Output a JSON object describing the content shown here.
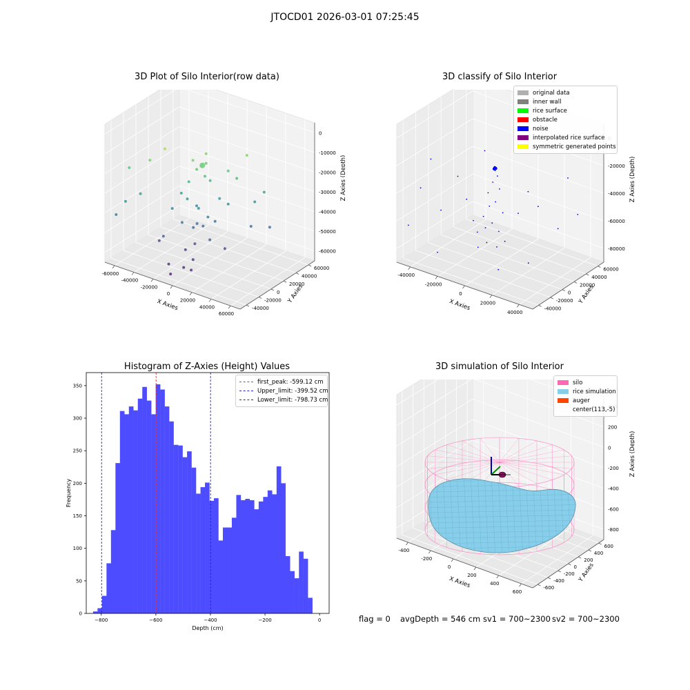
{
  "title": "JTOCD01 2026-03-01 07:25:45",
  "status": {
    "flag": "flag = 0",
    "avg_depth": "avgDepth = 546 cm",
    "sv1": "sv1 = 700~2300",
    "sv2": "sv2 = 700~2300"
  },
  "chart_data": [
    {
      "type": "scatter",
      "title": "3D Plot of Silo Interior(row data)",
      "xlabel": "X Axies",
      "ylabel": "Y Axies",
      "zlabel": "Z Axies (Depth)",
      "x_ticks": [
        "-60000",
        "-40000",
        "-20000",
        "0",
        "20000",
        "40000",
        "60000"
      ],
      "y_ticks": [
        "-40000",
        "-20000",
        "0",
        "20000",
        "40000",
        "60000"
      ],
      "z_ticks": [
        "0",
        "-10000",
        "-20000",
        "-30000",
        "-40000",
        "-50000",
        "-60000"
      ],
      "xlim": [
        -60000,
        60000
      ],
      "ylim": [
        -40000,
        60000
      ],
      "zlim": [
        -70000,
        5000
      ],
      "points": [
        {
          "x": -20000,
          "y": -20000,
          "z": -5000
        },
        {
          "x": -5000,
          "y": -5000,
          "z": -12000
        },
        {
          "x": 0,
          "y": 0,
          "z": -15000
        },
        {
          "x": 2000,
          "y": 2000,
          "z": -14000
        },
        {
          "x": -3000,
          "y": -3000,
          "z": -17000
        },
        {
          "x": 3000,
          "y": -1000,
          "z": -20000
        },
        {
          "x": -8000,
          "y": -6000,
          "z": -24000
        },
        {
          "x": 5000,
          "y": 3000,
          "z": -23000
        },
        {
          "x": 15000,
          "y": 12000,
          "z": -18000
        },
        {
          "x": 20000,
          "y": 16000,
          "z": -22000
        },
        {
          "x": -30000,
          "y": -25000,
          "z": -12000
        },
        {
          "x": -45000,
          "y": -30000,
          "z": -18000
        },
        {
          "x": 25000,
          "y": 22000,
          "z": -10000
        },
        {
          "x": 35000,
          "y": 30000,
          "z": -30000
        },
        {
          "x": 30000,
          "y": 25000,
          "z": -35000
        },
        {
          "x": -12000,
          "y": -10000,
          "z": -30000
        },
        {
          "x": -35000,
          "y": -30000,
          "z": -30000
        },
        {
          "x": -10000,
          "y": -5000,
          "z": -34000
        },
        {
          "x": 10000,
          "y": 8000,
          "z": -33000
        },
        {
          "x": 15000,
          "y": 12000,
          "z": -36000
        },
        {
          "x": -20000,
          "y": -10000,
          "z": -40000
        },
        {
          "x": -45000,
          "y": -35000,
          "z": -35000
        },
        {
          "x": -50000,
          "y": -40000,
          "z": -42000
        },
        {
          "x": 0,
          "y": -5000,
          "z": -37000
        },
        {
          "x": -5000,
          "y": 0,
          "z": -38000
        },
        {
          "x": 5000,
          "y": 0,
          "z": -42000
        },
        {
          "x": -10000,
          "y": -12000,
          "z": -45000
        },
        {
          "x": -2000,
          "y": -4000,
          "z": -46000
        },
        {
          "x": 8000,
          "y": 5000,
          "z": -45000
        },
        {
          "x": 2000,
          "y": -2000,
          "z": -47000
        },
        {
          "x": -4000,
          "y": -6000,
          "z": -48000
        },
        {
          "x": 30000,
          "y": 20000,
          "z": -47000
        },
        {
          "x": 40000,
          "y": 30000,
          "z": -48000
        },
        {
          "x": -20000,
          "y": -22000,
          "z": -52000
        },
        {
          "x": 10000,
          "y": -5000,
          "z": -52000
        },
        {
          "x": -25000,
          "y": -20000,
          "z": -56000
        },
        {
          "x": 0,
          "y": -10000,
          "z": -55000
        },
        {
          "x": -5000,
          "y": -15000,
          "z": -58000
        },
        {
          "x": 20000,
          "y": 0,
          "z": -56000
        },
        {
          "x": 5000,
          "y": -20000,
          "z": -60000
        },
        {
          "x": -10000,
          "y": -30000,
          "z": -63000
        },
        {
          "x": 0,
          "y": -25000,
          "z": -64000
        },
        {
          "x": 10000,
          "y": -30000,
          "z": -62000
        },
        {
          "x": -5000,
          "y": -35000,
          "z": -66000
        },
        {
          "x": 0,
          "y": 5000,
          "z": -10000
        }
      ]
    },
    {
      "type": "scatter",
      "title": "3D classify of Silo Interior",
      "xlabel": "X Axies",
      "ylabel": "Y Axies",
      "zlabel": "Z Axies (Depth)",
      "x_ticks": [
        "-40000",
        "-20000",
        "0",
        "20000",
        "40000"
      ],
      "y_ticks": [
        "-40000",
        "-20000",
        "0",
        "20000",
        "40000",
        "60000"
      ],
      "z_ticks": [
        "0",
        "-20000",
        "-40000",
        "-60000",
        "-80000"
      ],
      "xlim": [
        -50000,
        50000
      ],
      "ylim": [
        -45000,
        65000
      ],
      "zlim": [
        -90000,
        5000
      ],
      "legend_position": "top-right",
      "legend": [
        {
          "label": "original data",
          "color": "#b0b0b0"
        },
        {
          "label": "inner wall",
          "color": "#808080"
        },
        {
          "label": "rice surface",
          "color": "#00ff00"
        },
        {
          "label": "obstacle",
          "color": "#ff0000"
        },
        {
          "label": "noise",
          "color": "#0000ff"
        },
        {
          "label": "interpolated rice surface",
          "color": "#800080"
        },
        {
          "label": "symmetric generated points",
          "color": "#ffff00"
        }
      ],
      "points": [
        {
          "x": 0,
          "y": 0,
          "z": -22000
        },
        {
          "x": 500,
          "y": 500,
          "z": -22500
        },
        {
          "x": -500,
          "y": 0,
          "z": -23000
        },
        {
          "x": 200,
          "y": 300,
          "z": -24000
        },
        {
          "x": 1000,
          "y": 2000,
          "z": -28000
        },
        {
          "x": -1000,
          "y": -1000,
          "z": -32000
        },
        {
          "x": 3000,
          "y": 1000,
          "z": -36000
        },
        {
          "x": -4000,
          "y": -2000,
          "z": -40000
        },
        {
          "x": 2000,
          "y": -3000,
          "z": -44000
        },
        {
          "x": -2000,
          "y": -4000,
          "z": -48000
        },
        {
          "x": 5000,
          "y": 2000,
          "z": -52000
        },
        {
          "x": -6000,
          "y": -5000,
          "z": -56000
        },
        {
          "x": 1000,
          "y": -6000,
          "z": -58000
        },
        {
          "x": -3000,
          "y": -8000,
          "z": -62000
        },
        {
          "x": 4000,
          "y": -2000,
          "z": -64000
        },
        {
          "x": -8000,
          "y": -10000,
          "z": -66000
        },
        {
          "x": 0,
          "y": -12000,
          "z": -70000
        },
        {
          "x": 6000,
          "y": -9000,
          "z": -72000
        },
        {
          "x": -5000,
          "y": -15000,
          "z": -74000
        },
        {
          "x": 10000,
          "y": -5000,
          "z": -68000
        },
        {
          "x": -12000,
          "y": -8000,
          "z": -60000
        },
        {
          "x": 15000,
          "y": 5000,
          "z": -50000
        },
        {
          "x": -15000,
          "y": -12000,
          "z": -45000
        },
        {
          "x": 20000,
          "y": 10000,
          "z": -35000
        },
        {
          "x": -20000,
          "y": -15000,
          "z": -30000
        },
        {
          "x": 25000,
          "y": 15000,
          "z": -45000
        },
        {
          "x": -30000,
          "y": -20000,
          "z": -55000
        },
        {
          "x": 35000,
          "y": 25000,
          "z": -60000
        },
        {
          "x": -35000,
          "y": -25000,
          "z": -20000
        },
        {
          "x": 40000,
          "y": 30000,
          "z": -25000
        },
        {
          "x": -40000,
          "y": -30000,
          "z": -40000
        },
        {
          "x": 10000,
          "y": 20000,
          "z": -10000
        },
        {
          "x": -10000,
          "y": 5000,
          "z": -15000
        },
        {
          "x": 30000,
          "y": -10000,
          "z": -75000
        },
        {
          "x": -25000,
          "y": -35000,
          "z": -78000
        },
        {
          "x": 15000,
          "y": -25000,
          "z": -80000
        },
        {
          "x": 45000,
          "y": 35000,
          "z": -50000
        },
        {
          "x": -45000,
          "y": -38000,
          "z": -65000
        }
      ]
    },
    {
      "type": "bar",
      "title": "Histogram of Z-Axies (Height) Values",
      "xlabel": "Depth (cm)",
      "ylabel": "Frequency",
      "x_ticks": [
        "−800",
        "−600",
        "−400",
        "−200",
        "0"
      ],
      "y_ticks": [
        "0",
        "50",
        "100",
        "150",
        "200",
        "250",
        "300",
        "350"
      ],
      "xlim": [
        -855,
        35
      ],
      "ylim": [
        0,
        370
      ],
      "bin_start": -830,
      "bin_width": 16.4,
      "values": [
        3,
        8,
        27,
        77,
        128,
        231,
        311,
        306,
        318,
        312,
        330,
        348,
        327,
        306,
        352,
        344,
        318,
        295,
        259,
        258,
        240,
        249,
        224,
        184,
        194,
        201,
        173,
        177,
        112,
        132,
        132,
        147,
        182,
        174,
        176,
        174,
        160,
        172,
        179,
        189,
        183,
        226,
        200,
        88,
        65,
        54,
        95,
        84,
        24
      ],
      "lines": [
        {
          "label": "first_peak: -599.12 cm",
          "x": -599.12,
          "color": "#e03030"
        },
        {
          "label": "Upper_limit: -399.52 cm",
          "x": -399.52,
          "color": "#2222cc"
        },
        {
          "label": "Lower_limit: -798.73 cm",
          "x": -798.73,
          "color": "#2222cc"
        }
      ],
      "legend_position": "top-right",
      "bar_color": "#4d4dff"
    },
    {
      "type": "surface",
      "title": "3D simulation of Silo Interior",
      "xlabel": "X Axies",
      "ylabel": "Y Axies",
      "zlabel": "Z Axies (Depth)",
      "x_ticks": [
        "-400",
        "-200",
        "0",
        "200",
        "400",
        "600"
      ],
      "y_ticks": [
        "-600",
        "-400",
        "-200",
        "0",
        "200",
        "400",
        "600"
      ],
      "z_ticks": [
        "400",
        "200",
        "0",
        "-200",
        "-400",
        "-600",
        "-800"
      ],
      "legend_position": "top-right",
      "legend": [
        {
          "label": "silo",
          "color": "#ff69b4"
        },
        {
          "label": "rice simulation",
          "color": "#87ceeb"
        },
        {
          "label": "auger",
          "color": "#ff4500"
        },
        {
          "label": "center(113,-5)",
          "color": ""
        }
      ]
    }
  ]
}
